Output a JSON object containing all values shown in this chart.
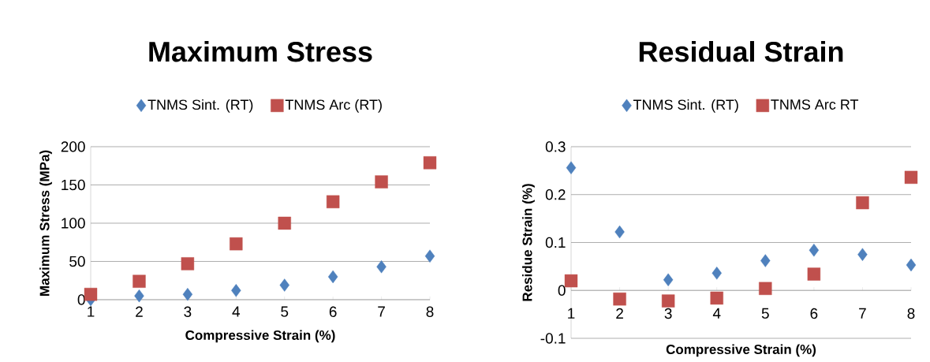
{
  "chart_data": [
    {
      "type": "scatter",
      "title": "Maximum Stress",
      "xlabel": "Compressive Strain (%)",
      "ylabel": "Maximum Stress (MPa)",
      "x": [
        1,
        2,
        3,
        4,
        5,
        6,
        7,
        8
      ],
      "series": [
        {
          "name": "TNMS Sint. (RT)",
          "color": "#4f81bd",
          "marker": "diamond",
          "values": [
            0,
            5,
            7,
            12,
            19,
            30,
            43,
            57
          ]
        },
        {
          "name": "TNMS Arc (RT)",
          "color": "#c0504d",
          "marker": "square",
          "values": [
            7,
            24,
            47,
            73,
            100,
            128,
            154,
            179
          ]
        }
      ],
      "xlim": [
        1,
        8
      ],
      "xticks": [
        1,
        2,
        3,
        4,
        5,
        6,
        7,
        8
      ],
      "ylim": [
        0,
        200
      ],
      "yticks": [
        0,
        50,
        100,
        150,
        200
      ],
      "grid": "y",
      "legend": "top"
    },
    {
      "type": "scatter",
      "title": "Residual Strain",
      "xlabel": "Compressive Strain (%)",
      "ylabel": "Residue Strain (%)",
      "x": [
        1,
        2,
        3,
        4,
        5,
        6,
        7,
        8
      ],
      "series": [
        {
          "name": "TNMS Sint. (RT)",
          "color": "#4f81bd",
          "marker": "diamond",
          "values": [
            0.256,
            0.122,
            0.022,
            0.036,
            0.062,
            0.084,
            0.075,
            0.053
          ]
        },
        {
          "name": "TNMS Arc RT",
          "color": "#c0504d",
          "marker": "square",
          "values": [
            0.02,
            -0.018,
            -0.022,
            -0.016,
            0.004,
            0.034,
            0.183,
            0.236
          ]
        }
      ],
      "xlim": [
        1,
        8
      ],
      "xticks": [
        1,
        2,
        3,
        4,
        5,
        6,
        7,
        8
      ],
      "ylim": [
        -0.1,
        0.3
      ],
      "yticks": [
        -0.1,
        0,
        0.1,
        0.2,
        0.3
      ],
      "grid": "y",
      "legend": "top"
    }
  ]
}
